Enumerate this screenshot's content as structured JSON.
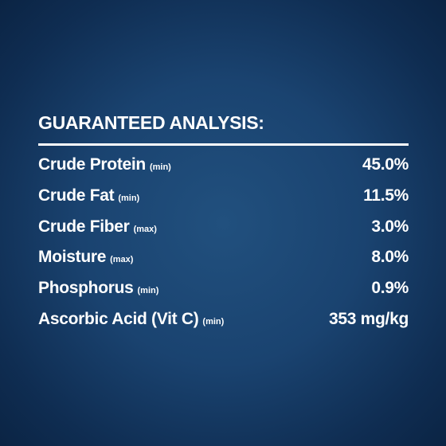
{
  "title": "GUARANTEED ANALYSIS:",
  "rows": [
    {
      "name": "Crude Protein",
      "qualifier": "(min)",
      "value": "45.0%"
    },
    {
      "name": "Crude Fat",
      "qualifier": "(min)",
      "value": "11.5%"
    },
    {
      "name": "Crude Fiber",
      "qualifier": "(max)",
      "value": "3.0%"
    },
    {
      "name": "Moisture",
      "qualifier": "(max)",
      "value": "8.0%"
    },
    {
      "name": "Phosphorus",
      "qualifier": "(min)",
      "value": "0.9%"
    },
    {
      "name": "Ascorbic Acid (Vit C)",
      "qualifier": "(min)",
      "value": "353 mg/kg"
    }
  ]
}
